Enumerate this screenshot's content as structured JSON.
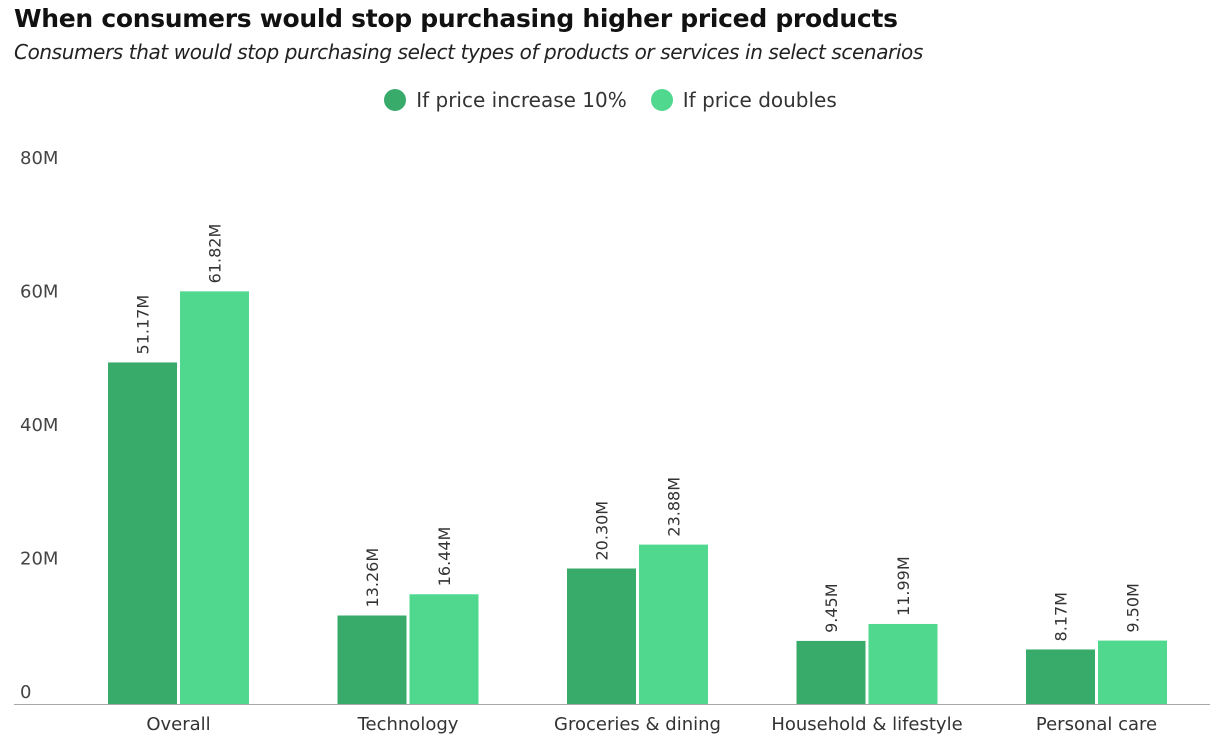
{
  "chart_data": {
    "type": "bar",
    "title": "When consumers would stop purchasing higher priced products",
    "subtitle": "Consumers that would stop purchasing select types of products or services in select scenarios",
    "categories": [
      "Overall",
      "Technology",
      "Groceries & dining",
      "Household & lifestyle",
      "Personal care"
    ],
    "series": [
      {
        "name": "If price increase 10%",
        "color": "#38aa6a",
        "values": [
          51.17,
          13.26,
          20.3,
          9.45,
          8.17
        ],
        "labels": [
          "51.17M",
          "13.26M",
          "20.30M",
          "9.45M",
          "8.17M"
        ]
      },
      {
        "name": "If price doubles",
        "color": "#50d88e",
        "values": [
          61.82,
          16.44,
          23.88,
          11.99,
          9.5
        ],
        "labels": [
          "61.82M",
          "16.44M",
          "23.88M",
          "11.99M",
          "9.50M"
        ]
      }
    ],
    "y_ticks": [
      {
        "value": 0,
        "label": "0"
      },
      {
        "value": 20,
        "label": "20M"
      },
      {
        "value": 40,
        "label": "40M"
      },
      {
        "value": 60,
        "label": "60M"
      },
      {
        "value": 80,
        "label": "80M"
      }
    ],
    "ylim": [
      0,
      80
    ],
    "legend_position": "top-center",
    "grid": false
  }
}
